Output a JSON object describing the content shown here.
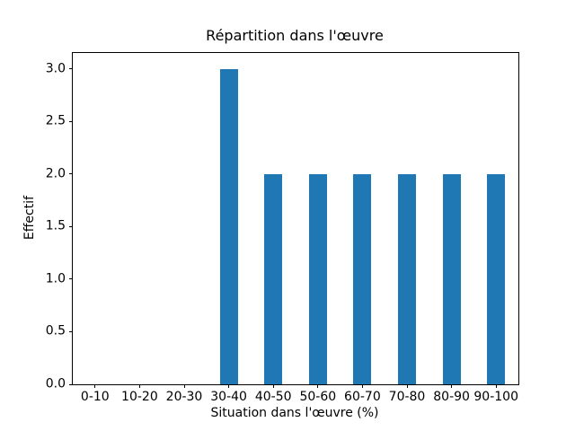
{
  "chart_data": {
    "type": "bar",
    "title": "Répartition dans l'œuvre",
    "xlabel": "Situation dans l'œuvre (%)",
    "ylabel": "Effectif",
    "categories": [
      "0-10",
      "10-20",
      "20-30",
      "30-40",
      "40-50",
      "50-60",
      "60-70",
      "70-80",
      "80-90",
      "90-100"
    ],
    "values": [
      0,
      0,
      0,
      3,
      2,
      2,
      2,
      2,
      2,
      2
    ],
    "yticks": [
      "0.0",
      "0.5",
      "1.0",
      "1.5",
      "2.0",
      "2.5",
      "3.0"
    ],
    "ylim": [
      0,
      3.15
    ],
    "bar_color": "#1f77b4",
    "grid": false,
    "legend": null,
    "background_color": "#ffffff",
    "spine_color": "#000000"
  }
}
